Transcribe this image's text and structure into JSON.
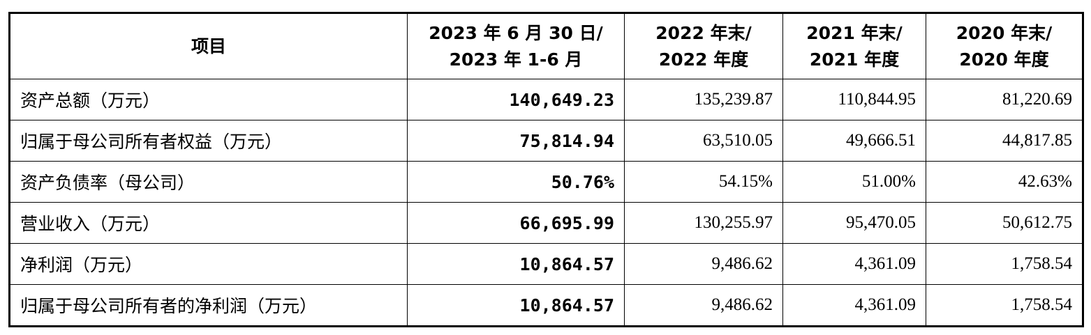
{
  "table": {
    "header": [
      [
        "项目"
      ],
      [
        "2023 年 6 月 30 日/",
        "2023 年 1-6 月"
      ],
      [
        "2022 年末/",
        "2022 年度"
      ],
      [
        "2021 年末/",
        "2021 年度"
      ],
      [
        "2020 年末/",
        "2020 年度"
      ]
    ],
    "rows": [
      [
        "资产总额（万元）",
        "140,649.23",
        "135,239.87",
        "110,844.95",
        "81,220.69"
      ],
      [
        "归属于母公司所有者权益（万元）",
        "75,814.94",
        "63,510.05",
        "49,666.51",
        "44,817.85"
      ],
      [
        "资产负债率（母公司）",
        "50.76%",
        "54.15%",
        "51.00%",
        "42.63%"
      ],
      [
        "营业收入（万元）",
        "66,695.99",
        "130,255.97",
        "95,470.05",
        "50,612.75"
      ],
      [
        "净利润（万元）",
        "10,864.57",
        "9,486.62",
        "4,361.09",
        "1,758.54"
      ],
      [
        "归属于母公司所有者的净利润（万元）",
        "10,864.57",
        "9,486.62",
        "4,361.09",
        "1,758.54"
      ]
    ]
  }
}
